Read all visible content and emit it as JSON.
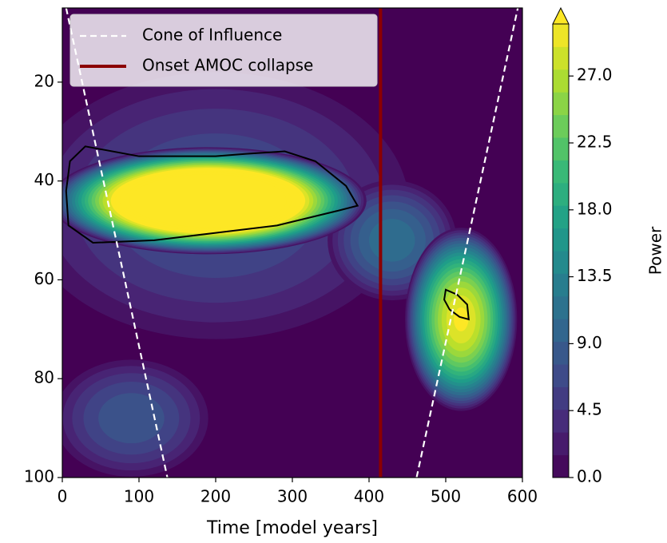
{
  "chart_data": {
    "type": "contour",
    "xlabel": "Time [model years]",
    "xlim": [
      0,
      600
    ],
    "xticks": [
      0,
      100,
      200,
      300,
      400,
      500,
      600
    ],
    "ylim": [
      100,
      5
    ],
    "yticks": [
      20,
      40,
      60,
      80,
      100
    ],
    "colorbar": {
      "label": "Power",
      "clim": [
        0,
        30.5
      ],
      "extend": "max",
      "ticks": [
        {
          "value": 0,
          "label": "0.0"
        },
        4.5,
        {
          "value": 9,
          "label": "9.0"
        },
        13.5,
        {
          "value": 18,
          "label": "18.0"
        },
        22.5,
        {
          "value": 27,
          "label": "27.0"
        }
      ]
    },
    "blobs": [
      {
        "x": 200,
        "y": 45,
        "rx": 280,
        "ry": 30,
        "peak": 8
      },
      {
        "x": 90,
        "y": 88,
        "rx": 110,
        "ry": 13,
        "peak": 9
      },
      {
        "x": 430,
        "y": 52,
        "rx": 90,
        "ry": 13,
        "peak": 12
      },
      {
        "x": 520,
        "y": 68,
        "rx": 75,
        "ry": 19,
        "peak": 31
      },
      {
        "x": 190,
        "y": 44,
        "rx": 210,
        "ry": 11,
        "peak": 48
      }
    ],
    "significance_contours": [
      {
        "x": [
          30,
          100,
          200,
          240,
          290,
          330,
          370,
          385,
          360,
          280,
          200,
          120,
          40,
          8,
          5,
          10,
          30
        ],
        "y": [
          33,
          35,
          35,
          34.5,
          34,
          36,
          41,
          45,
          46,
          49,
          50.5,
          52,
          52.5,
          49,
          42,
          36,
          33
        ]
      },
      {
        "x": [
          500,
          515,
          528,
          530,
          518,
          505,
          498,
          500
        ],
        "y": [
          62,
          63,
          65,
          68,
          67.5,
          66,
          64,
          62
        ]
      }
    ],
    "series": [
      {
        "name": "Cone of Influence",
        "color": "#ffffff",
        "dashed": true,
        "x": [
          5,
          137,
          null,
          462,
          594
        ],
        "y": [
          5,
          100,
          null,
          100,
          5
        ]
      },
      {
        "name": "Onset AMOC collapse",
        "color": "#8b0000",
        "dashed": false,
        "x": [
          415,
          415
        ],
        "y": [
          5,
          100
        ]
      }
    ]
  }
}
